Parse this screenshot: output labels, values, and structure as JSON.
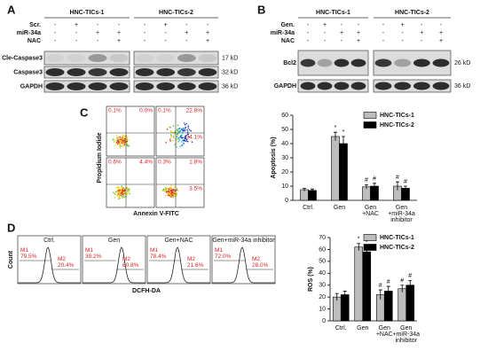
{
  "panel_a": {
    "label": "A",
    "groups": [
      "HNC-TICs-1",
      "HNC-TICs-2"
    ],
    "treatments": [
      {
        "name": "Scr.",
        "signs": [
          "-",
          "+",
          "-",
          "-",
          "-",
          "+",
          "-",
          "-"
        ]
      },
      {
        "name": "miR-34a",
        "signs": [
          "-",
          "-",
          "+",
          "+",
          "-",
          "-",
          "+",
          "+"
        ]
      },
      {
        "name": "NAC",
        "signs": [
          "-",
          "-",
          "-",
          "+",
          "-",
          "-",
          "-",
          "+"
        ]
      }
    ],
    "blots": [
      {
        "name": "Cle-Caspase3",
        "size": "17 kD"
      },
      {
        "name": "Caspase3",
        "size": "32 kD"
      },
      {
        "name": "GAPDH",
        "size": "36 kD"
      }
    ]
  },
  "panel_b": {
    "label": "B",
    "groups": [
      "HNC-TICs-1",
      "HNC-TICs-2"
    ],
    "treatments": [
      {
        "name": "Gen.",
        "signs": [
          "-",
          "+",
          "-",
          "-",
          "-",
          "+",
          "-",
          "-"
        ]
      },
      {
        "name": "miR-34a",
        "signs": [
          "-",
          "-",
          "+",
          "+",
          "-",
          "-",
          "+",
          "+"
        ]
      },
      {
        "name": "NAC",
        "signs": [
          "-",
          "-",
          "-",
          "+",
          "-",
          "-",
          "-",
          "+"
        ]
      }
    ],
    "blots": [
      {
        "name": "Bcl2",
        "size": "26 kD"
      },
      {
        "name": "GAPDH",
        "size": "36 kD"
      }
    ]
  },
  "panel_c": {
    "label": "C",
    "y_label": "Propidium Iodide",
    "x_label": "Annexin V-FITC",
    "plots": [
      {
        "upper_left": "0.1%",
        "upper_right": "0.0%"
      },
      {
        "upper_left": "0.1%",
        "upper_right": "22.8%",
        "lower_right": "24.1%"
      },
      {
        "upper_left": "0.6%",
        "upper_right": "4.4%"
      },
      {
        "upper_left": "0.3%",
        "upper_right": "1.8%",
        "lower_right": "3.5%"
      }
    ]
  },
  "panel_d": {
    "label": "D",
    "y_label": "Count",
    "x_label": "DCFH-DA",
    "histograms": [
      {
        "title": "Ctrl.",
        "m1": "M1",
        "m1_value": "79.5%",
        "m2": "M2",
        "m2_value": "20.4%"
      },
      {
        "title": "Gen",
        "m1": "M1",
        "m1_value": "39.2%",
        "m2": "M2",
        "m2_value": "60.8%"
      },
      {
        "title": "Gen+NAC",
        "m1": "M1",
        "m1_value": "78.4%",
        "m2": "M2",
        "m2_value": "21.6%"
      },
      {
        "title": "Gen+miR-34a inhibitor",
        "m1": "M1",
        "m1_value": "72.0%",
        "m2": "M2",
        "m2_value": "28.0%"
      }
    ]
  },
  "chart_data": [
    {
      "type": "bar",
      "y_label": "Apoptosis (%)",
      "categories": [
        [
          "Ctrl."
        ],
        [
          "Gen"
        ],
        [
          "Gen",
          "+NAC"
        ],
        [
          "Gen",
          "+miR-34a",
          "inhibitor"
        ]
      ],
      "series": [
        {
          "name": "HNC-TICs-1",
          "color": "#bdbdbd",
          "values": [
            7.5,
            45,
            9.5,
            10
          ],
          "errors": [
            1,
            3,
            1.5,
            3
          ]
        },
        {
          "name": "HNC-TICs-2",
          "color": "#000000",
          "values": [
            7,
            40,
            10,
            8.5
          ],
          "errors": [
            1,
            5,
            2,
            1.5
          ]
        }
      ],
      "annotations": [
        {
          "series": 0,
          "category": 1,
          "text": "*"
        },
        {
          "series": 1,
          "category": 1,
          "text": "*"
        },
        {
          "series": 0,
          "category": 2,
          "text": "#"
        },
        {
          "series": 1,
          "category": 2,
          "text": "#"
        },
        {
          "series": 0,
          "category": 3,
          "text": "#"
        },
        {
          "series": 1,
          "category": 3,
          "text": "#"
        }
      ],
      "ylim": [
        0,
        60
      ],
      "yticks": [
        0,
        10,
        20,
        30,
        40,
        50,
        60
      ],
      "legend": "upper right"
    },
    {
      "type": "bar",
      "y_label": "ROS (%)",
      "categories": [
        [
          "Ctrl."
        ],
        [
          "Gen"
        ],
        [
          "Gen",
          "+NAC"
        ],
        [
          "Gen",
          "+miR-34a",
          "inhibitor"
        ]
      ],
      "series": [
        {
          "name": "HNC-TICs-1",
          "color": "#bdbdbd",
          "values": [
            20,
            62,
            22,
            27
          ],
          "errors": [
            3,
            3,
            4,
            3
          ]
        },
        {
          "name": "HNC-TICs-2",
          "color": "#000000",
          "values": [
            22,
            58,
            25,
            30
          ],
          "errors": [
            3,
            4,
            4,
            4
          ]
        }
      ],
      "annotations": [
        {
          "series": 0,
          "category": 1,
          "text": "*"
        },
        {
          "series": 1,
          "category": 1,
          "text": "*"
        },
        {
          "series": 0,
          "category": 2,
          "text": "#"
        },
        {
          "series": 1,
          "category": 2,
          "text": "#"
        },
        {
          "series": 0,
          "category": 3,
          "text": "#"
        },
        {
          "series": 1,
          "category": 3,
          "text": "#"
        }
      ],
      "ylim": [
        0,
        70
      ],
      "yticks": [
        0,
        10,
        20,
        30,
        40,
        50,
        60,
        70
      ],
      "legend": "upper right"
    }
  ]
}
